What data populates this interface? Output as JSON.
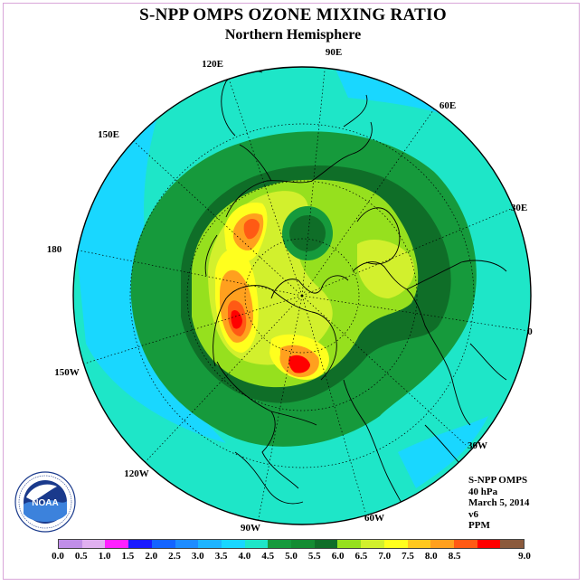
{
  "title": "S-NPP OMPS OZONE MIXING RATIO",
  "subtitle": "Northern Hemisphere",
  "longitude_labels": [
    "90E",
    "60E",
    "30E",
    "0",
    "30W",
    "60W",
    "90W",
    "120W",
    "150W",
    "180",
    "150E",
    "120E"
  ],
  "info": {
    "instrument": "S-NPP OMPS",
    "level": "40 hPa",
    "date": "March 5, 2014",
    "version": "v6",
    "units": "PPM"
  },
  "logo": {
    "text": "NOAA",
    "ring_text": "NATIONAL OCEANIC AND ATMOSPHERIC ADMINISTRATION · U.S. DEPARTMENT OF COMMERCE"
  },
  "colorbar": {
    "ticks": [
      "0.0",
      "0.5",
      "1.0",
      "1.5",
      "2.0",
      "2.5",
      "3.0",
      "3.5",
      "4.0",
      "4.5",
      "5.0",
      "5.5",
      "6.0",
      "6.5",
      "7.0",
      "7.5",
      "8.0",
      "8.5",
      "9.0"
    ],
    "colors": [
      "#c08ee8",
      "#e0b0f0",
      "#ff20ff",
      "#1a1aff",
      "#1464ff",
      "#1e8cff",
      "#1eb4ff",
      "#19d7ff",
      "#1ee6c8",
      "#169a3c",
      "#148c32",
      "#0f6e28",
      "#96e01e",
      "#d2f02d",
      "#ffff1e",
      "#ffc81e",
      "#ffa01e",
      "#ff5a14",
      "#ff0000",
      "#8b5a3c"
    ]
  }
}
